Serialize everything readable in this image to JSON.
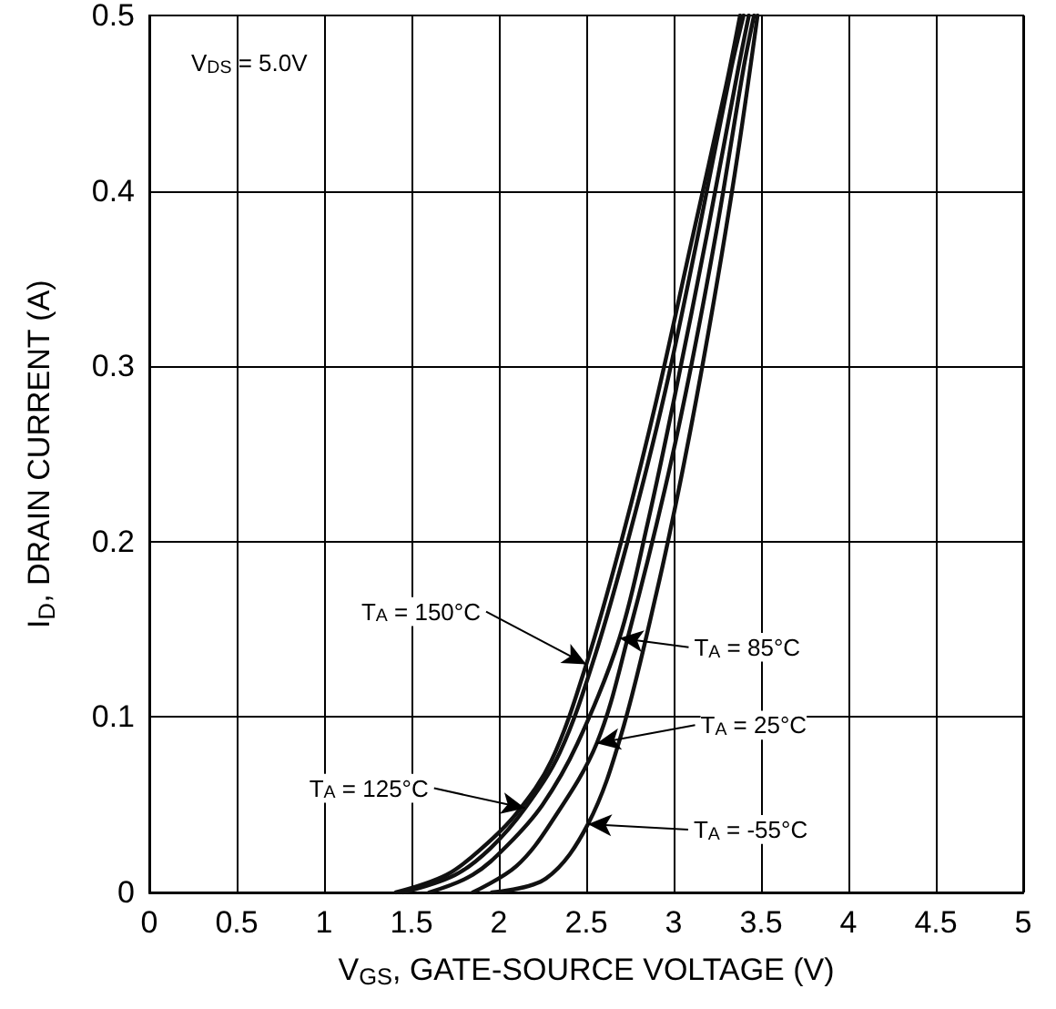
{
  "chart_data": {
    "type": "line",
    "xlabel": "V$_{GS}$, GATE-SOURCE VOLTAGE (V)",
    "ylabel": "I$_{D}$, DRAIN CURRENT (A)",
    "xlim": [
      0,
      5
    ],
    "xticks": [
      0,
      0.5,
      1,
      1.5,
      2,
      2.5,
      3,
      3.5,
      4,
      4.5,
      5
    ],
    "ylim": [
      0,
      0.5
    ],
    "yticks": [
      0,
      0.1,
      0.2,
      0.3,
      0.4,
      0.5
    ],
    "grid": true,
    "marker": "none",
    "line_style": "solid",
    "series": [
      {
        "color": "#111111",
        "x": [
          1.41,
          1.7,
          1.9,
          2.1,
          2.3,
          2.5,
          2.7,
          2.9,
          3.1,
          3.3,
          3.38
        ],
        "values": [
          0,
          0.01,
          0.025,
          0.045,
          0.075,
          0.13,
          0.2,
          0.28,
          0.37,
          0.46,
          0.5
        ]
      },
      {
        "color": "#111111",
        "x": [
          1.45,
          1.75,
          1.95,
          2.15,
          2.35,
          2.55,
          2.75,
          2.95,
          3.15,
          3.33,
          3.4
        ],
        "values": [
          0,
          0.01,
          0.025,
          0.048,
          0.08,
          0.135,
          0.205,
          0.285,
          0.38,
          0.47,
          0.5
        ]
      },
      {
        "color": "#111111",
        "x": [
          1.6,
          1.85,
          2.05,
          2.25,
          2.45,
          2.69,
          2.85,
          3.0,
          3.2,
          3.37,
          3.43
        ],
        "values": [
          0,
          0.01,
          0.027,
          0.05,
          0.085,
          0.145,
          0.21,
          0.28,
          0.38,
          0.47,
          0.5
        ]
      },
      {
        "color": "#111111",
        "x": [
          1.85,
          2.1,
          2.3,
          2.56,
          2.75,
          2.95,
          3.1,
          3.25,
          3.4,
          3.46
        ],
        "values": [
          0,
          0.015,
          0.04,
          0.085,
          0.15,
          0.23,
          0.3,
          0.38,
          0.47,
          0.5
        ]
      },
      {
        "color": "#111111",
        "x": [
          1.96,
          2.27,
          2.51,
          2.7,
          2.9,
          3.05,
          3.2,
          3.35,
          3.48
        ],
        "values": [
          0,
          0.008,
          0.039,
          0.09,
          0.17,
          0.24,
          0.32,
          0.41,
          0.5
        ]
      }
    ],
    "annotations": [
      "V$_{DS}$ = 5.0V",
      {
        "text": "T$_{A}$ = 150°C",
        "x": 2.5,
        "y": 0.13
      },
      {
        "text": "T$_{A}$ = 85°C",
        "x": 2.69,
        "y": 0.145
      },
      {
        "text": "T$_{A}$ = 25°C",
        "x": 2.56,
        "y": 0.085
      },
      {
        "text": "T$_{A}$ = 125°C",
        "x": 2.15,
        "y": 0.048
      },
      {
        "text": "T$_{A}$ = -55°C",
        "x": 2.51,
        "y": 0.039
      }
    ]
  }
}
